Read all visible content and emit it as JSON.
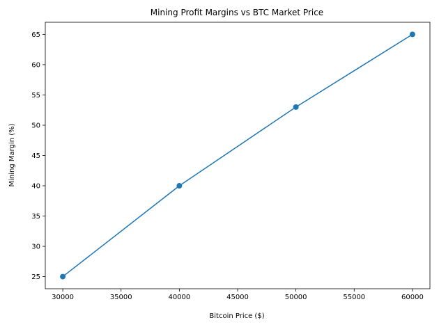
{
  "chart_data": {
    "type": "line",
    "title": "Mining Profit Margins vs BTC Market Price",
    "xlabel": "Bitcoin Price ($)",
    "ylabel": "Mining Margin (%)",
    "x": [
      30000,
      40000,
      50000,
      60000
    ],
    "series": [
      {
        "values": [
          25,
          40,
          53,
          65
        ],
        "color": "#1f77b4",
        "marker": "circle"
      }
    ],
    "xlim": [
      28500,
      61500
    ],
    "ylim": [
      23,
      67
    ],
    "xticks": [
      30000,
      35000,
      40000,
      45000,
      50000,
      55000,
      60000
    ],
    "yticks": [
      25,
      30,
      35,
      40,
      45,
      50,
      55,
      60,
      65
    ],
    "grid": false,
    "legend": "none"
  }
}
